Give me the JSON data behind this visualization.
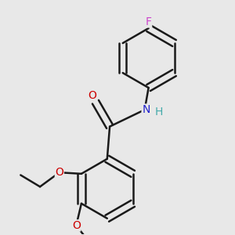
{
  "background_color": "#e8e8e8",
  "bond_color": "#1a1a1a",
  "bond_width": 1.8,
  "atom_colors": {
    "F": "#cc44cc",
    "O": "#cc0000",
    "N": "#2222cc",
    "H": "#44aaaa",
    "C": "#1a1a1a"
  },
  "font_size": 10,
  "fig_size": [
    3.0,
    3.0
  ],
  "dpi": 100
}
